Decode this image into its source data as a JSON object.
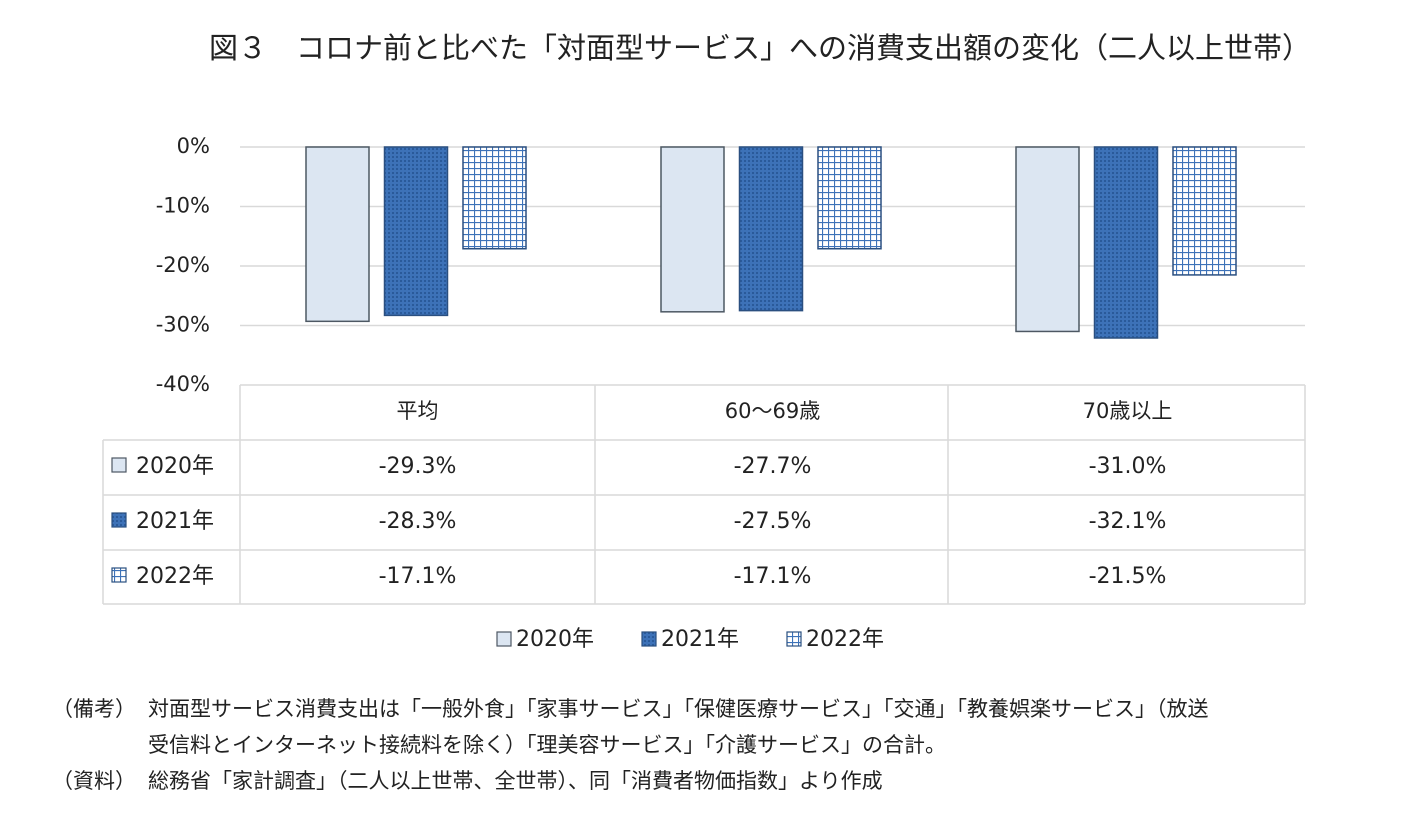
{
  "chart_data": {
    "type": "bar",
    "title": "図３　コロナ前と比べた「対面型サービス」への消費支出額の変化（二人以上世帯）",
    "categories": [
      "平均",
      "60～69歳",
      "70歳以上"
    ],
    "series": [
      {
        "name": "2020年",
        "color": "#dce6f2",
        "pattern": "solid",
        "values": [
          -29.3,
          -27.7,
          -31.0
        ],
        "value_labels": [
          "-29.3%",
          "-27.7%",
          "-31.0%"
        ]
      },
      {
        "name": "2021年",
        "color": "#3d72b8",
        "pattern": "dots",
        "values": [
          -28.3,
          -27.5,
          -32.1
        ],
        "value_labels": [
          "-28.3%",
          "-27.5%",
          "-32.1%"
        ]
      },
      {
        "name": "2022年",
        "color": "#3d72b8",
        "pattern": "grid",
        "values": [
          -17.1,
          -17.1,
          -21.5
        ],
        "value_labels": [
          "-17.1%",
          "-17.1%",
          "-21.5%"
        ]
      }
    ],
    "ylim": [
      -40,
      0
    ],
    "yticks": [
      {
        "value": 0,
        "label": "0%"
      },
      {
        "value": -10,
        "label": "-10%"
      },
      {
        "value": -20,
        "label": "-20%"
      },
      {
        "value": -30,
        "label": "-30%"
      },
      {
        "value": -40,
        "label": "-40%"
      }
    ],
    "grid": true,
    "notes": [
      {
        "label": "（備考）",
        "lines": [
          "対面型サービス消費支出は「一般外食」「家事サービス」「保健医療サービス」「交通」「教養娯楽サービス」（放送",
          "受信料とインターネット接続料を除く）「理美容サービス」「介護サービス」の合計。"
        ]
      },
      {
        "label": "（資料）",
        "lines": [
          "総務省「家計調査」（二人以上世帯、全世帯）、同「消費者物価指数」より作成"
        ]
      }
    ]
  }
}
